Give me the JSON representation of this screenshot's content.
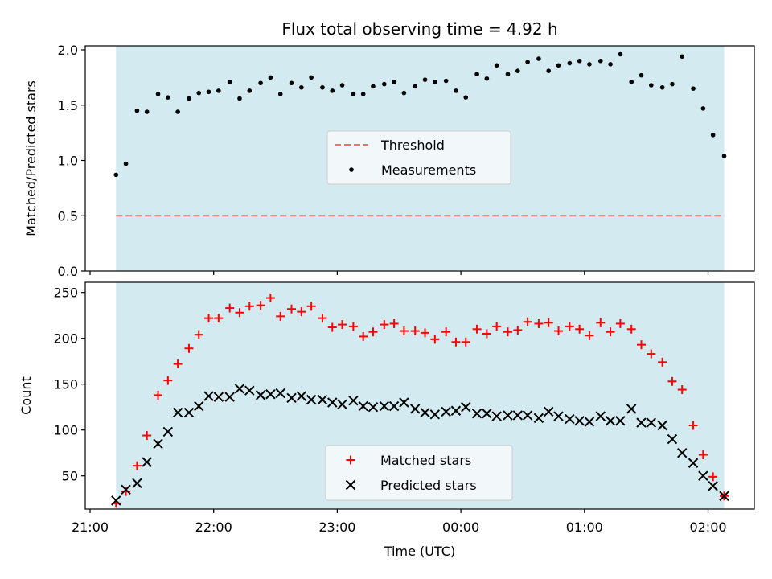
{
  "title": "Flux total observing time = 4.92 h",
  "xlabel": "Time (UTC)",
  "x_ticks": [
    {
      "label": "21:00",
      "hours": 0
    },
    {
      "label": "22:00",
      "hours": 1
    },
    {
      "label": "23:00",
      "hours": 2
    },
    {
      "label": "00:00",
      "hours": 3
    },
    {
      "label": "01:00",
      "hours": 4
    },
    {
      "label": "02:00",
      "hours": 5
    }
  ],
  "shaded_span_hours": [
    0.21,
    5.13
  ],
  "colors": {
    "shade": "#d3eaf0",
    "threshold": "#f07070",
    "measurement": "#000000",
    "matched": "#ff0000",
    "predicted": "#000000"
  },
  "chart_data": [
    {
      "type": "scatter",
      "ylabel": "Matched/Predicted stars",
      "ylim": [
        0,
        2.0
      ],
      "yticks": [
        "0.0",
        "0.5",
        "1.0",
        "1.5",
        "2.0"
      ],
      "legend": {
        "placement": "center",
        "entries": [
          "Threshold",
          "Measurements"
        ]
      },
      "threshold": 0.5,
      "series": [
        {
          "name": "Measurements",
          "x": [
            0.21,
            0.29,
            0.38,
            0.46,
            0.55,
            0.63,
            0.71,
            0.8,
            0.88,
            0.96,
            1.04,
            1.13,
            1.21,
            1.29,
            1.38,
            1.46,
            1.54,
            1.63,
            1.71,
            1.79,
            1.88,
            1.96,
            2.04,
            2.13,
            2.21,
            2.29,
            2.38,
            2.46,
            2.54,
            2.63,
            2.71,
            2.79,
            2.88,
            2.96,
            3.04,
            3.13,
            3.21,
            3.29,
            3.38,
            3.46,
            3.54,
            3.63,
            3.71,
            3.79,
            3.88,
            3.96,
            4.04,
            4.13,
            4.21,
            4.29,
            4.38,
            4.46,
            4.54,
            4.63,
            4.71,
            4.79,
            4.88,
            4.96,
            5.04,
            5.13
          ],
          "y": [
            0.87,
            0.97,
            1.45,
            1.44,
            1.6,
            1.57,
            1.44,
            1.56,
            1.61,
            1.62,
            1.63,
            1.71,
            1.56,
            1.63,
            1.7,
            1.75,
            1.6,
            1.7,
            1.66,
            1.75,
            1.66,
            1.63,
            1.68,
            1.6,
            1.6,
            1.67,
            1.69,
            1.71,
            1.61,
            1.67,
            1.73,
            1.71,
            1.72,
            1.63,
            1.57,
            1.78,
            1.74,
            1.86,
            1.78,
            1.81,
            1.89,
            1.92,
            1.81,
            1.86,
            1.88,
            1.9,
            1.87,
            1.9,
            1.87,
            1.96,
            1.71,
            1.77,
            1.68,
            1.66,
            1.69,
            1.94,
            1.65,
            1.47,
            1.23,
            1.04
          ]
        }
      ]
    },
    {
      "type": "scatter",
      "ylabel": "Count",
      "ylim": [
        5,
        255
      ],
      "yticks": [
        "50",
        "100",
        "150",
        "200",
        "250"
      ],
      "legend": {
        "placement": "lower center",
        "entries": [
          "Matched stars",
          "Predicted stars"
        ]
      },
      "x": [
        0.21,
        0.29,
        0.38,
        0.46,
        0.55,
        0.63,
        0.71,
        0.8,
        0.88,
        0.96,
        1.04,
        1.13,
        1.21,
        1.29,
        1.38,
        1.46,
        1.54,
        1.63,
        1.71,
        1.79,
        1.88,
        1.96,
        2.04,
        2.13,
        2.21,
        2.29,
        2.38,
        2.46,
        2.54,
        2.63,
        2.71,
        2.79,
        2.88,
        2.96,
        3.04,
        3.13,
        3.21,
        3.29,
        3.38,
        3.46,
        3.54,
        3.63,
        3.71,
        3.79,
        3.88,
        3.96,
        4.04,
        4.13,
        4.21,
        4.29,
        4.38,
        4.46,
        4.54,
        4.63,
        4.71,
        4.79,
        4.88,
        4.96,
        5.04,
        5.13
      ],
      "series": [
        {
          "name": "Matched stars",
          "values": [
            20,
            33,
            61,
            94,
            138,
            154,
            172,
            189,
            204,
            222,
            222,
            233,
            228,
            235,
            236,
            244,
            224,
            232,
            229,
            235,
            222,
            212,
            215,
            213,
            202,
            207,
            215,
            216,
            208,
            208,
            206,
            199,
            207,
            196,
            196,
            210,
            205,
            213,
            207,
            209,
            218,
            216,
            217,
            208,
            213,
            210,
            203,
            217,
            207,
            216,
            210,
            193,
            183,
            174,
            153,
            144,
            105,
            73,
            49,
            28
          ]
        },
        {
          "name": "Predicted stars",
          "values": [
            23,
            35,
            42,
            65,
            85,
            98,
            119,
            119,
            126,
            137,
            136,
            136,
            145,
            143,
            138,
            139,
            140,
            135,
            137,
            133,
            133,
            130,
            128,
            132,
            126,
            125,
            126,
            126,
            130,
            123,
            119,
            117,
            120,
            121,
            125,
            118,
            118,
            115,
            116,
            116,
            116,
            113,
            120,
            115,
            112,
            110,
            109,
            115,
            110,
            110,
            123,
            108,
            108,
            105,
            90,
            75,
            64,
            50,
            39,
            28
          ]
        }
      ]
    }
  ]
}
